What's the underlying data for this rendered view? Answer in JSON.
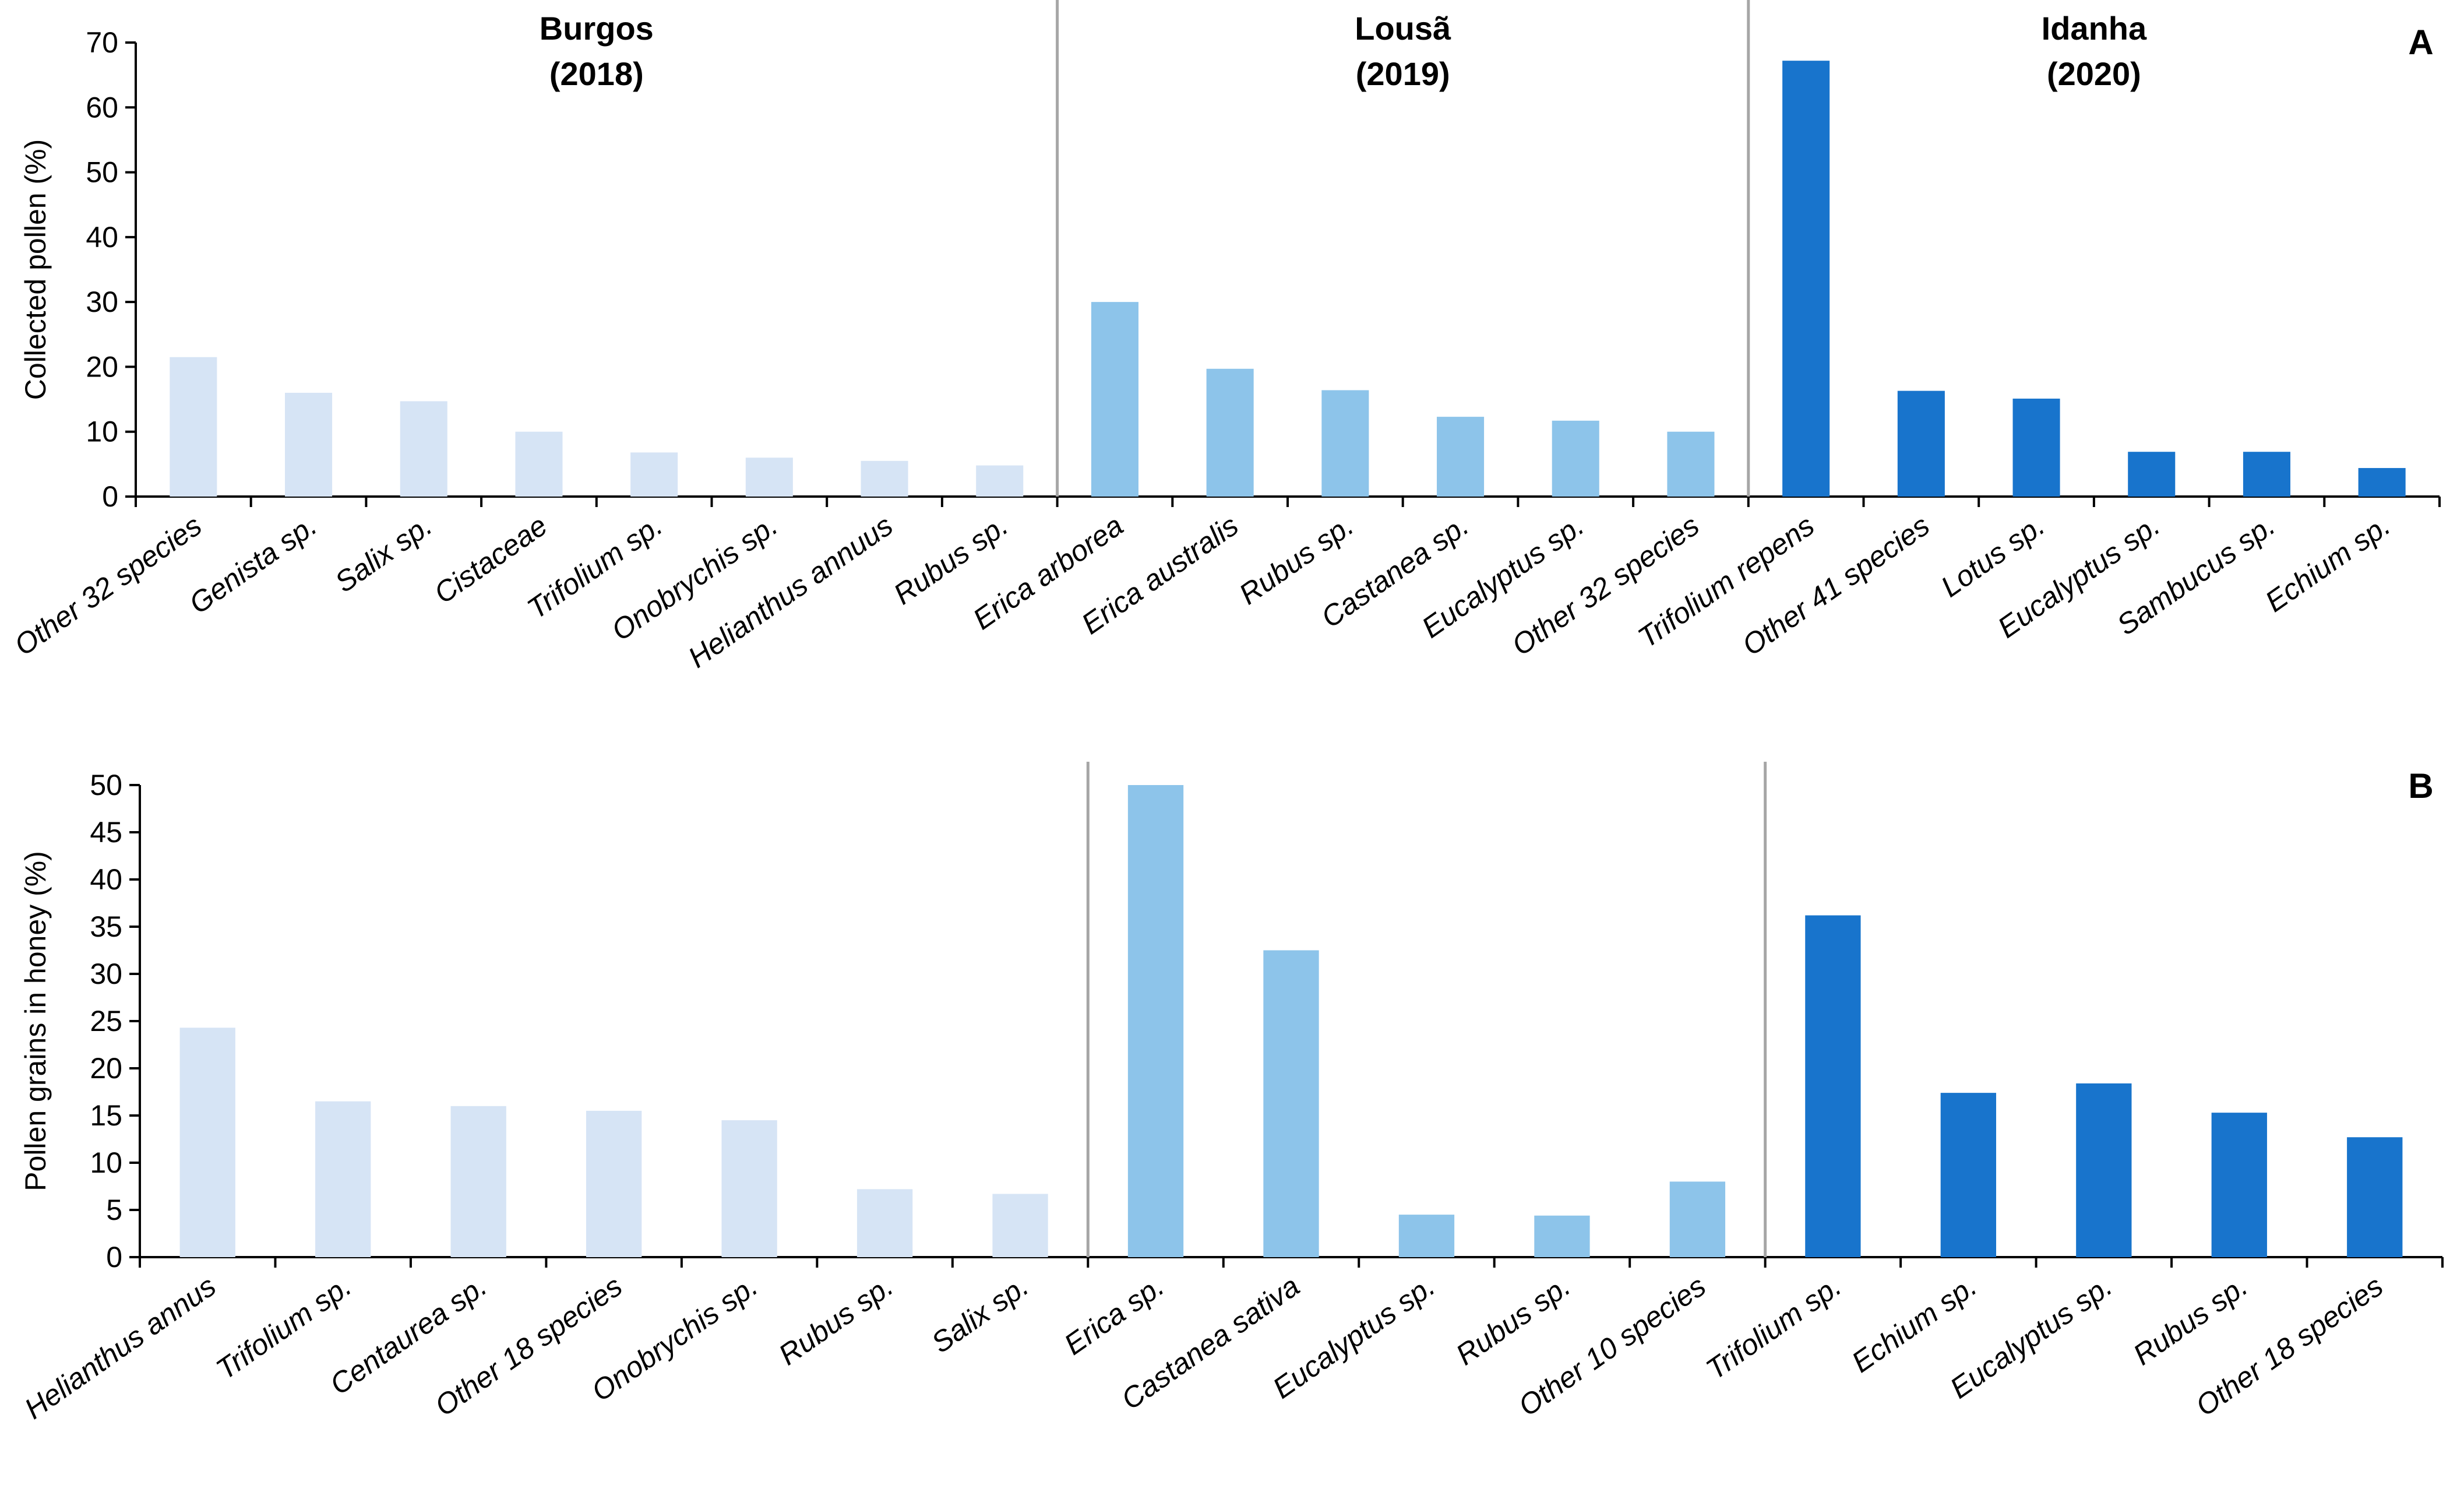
{
  "colors": {
    "Burgos": "#d6e4f5",
    "Lousã": "#8dc4ea",
    "Idanha": "#1874cc",
    "axis": "#000000",
    "separator": "#a6a6a6"
  },
  "chart_data": [
    {
      "type": "bar",
      "panel": "A",
      "ylabel": "Collected pollen (%)",
      "ylim": [
        0,
        70
      ],
      "yticks": [
        0,
        10,
        20,
        30,
        40,
        50,
        60,
        70
      ],
      "groups": [
        {
          "name": "Burgos",
          "title": [
            "Burgos",
            "(2018)"
          ],
          "categories": [
            "Other 32 species",
            "Genista sp.",
            "Salix sp.",
            "Cistaceae",
            "Trifolium sp.",
            "Onobrychis sp.",
            "Helianthus annuus",
            "Rubus sp."
          ],
          "values": [
            21.5,
            16,
            14.7,
            10,
            6.8,
            6,
            5.5,
            4.8
          ]
        },
        {
          "name": "Lousã",
          "title": [
            "Lousã",
            "(2019)"
          ],
          "categories": [
            "Erica arborea",
            "Erica australis",
            "Rubus sp.",
            "Castanea sp.",
            "Eucalyptus sp.",
            "Other 32 species"
          ],
          "values": [
            30,
            19.7,
            16.4,
            12.3,
            11.7,
            10
          ]
        },
        {
          "name": "Idanha",
          "title": [
            "Idanha",
            "(2020)"
          ],
          "categories": [
            "Trifolium repens",
            "Other 41 species",
            "Lotus sp.",
            "Eucalyptus sp.",
            "Sambucus sp.",
            "Echium sp."
          ],
          "values": [
            67.2,
            16.3,
            15.1,
            6.9,
            6.9,
            4.4
          ]
        }
      ]
    },
    {
      "type": "bar",
      "panel": "B",
      "ylabel": "Pollen grains in honey (%)",
      "ylim": [
        0,
        50
      ],
      "yticks": [
        0,
        5,
        10,
        15,
        20,
        25,
        30,
        35,
        40,
        45,
        50
      ],
      "groups": [
        {
          "name": "Burgos",
          "categories": [
            "Helianthus annus",
            "Trifolium sp.",
            "Centaurea sp.",
            "Other 18 species",
            "Onobrychis sp.",
            "Rubus sp.",
            "Salix sp."
          ],
          "values": [
            24.3,
            16.5,
            16,
            15.5,
            14.5,
            7.2,
            6.7
          ]
        },
        {
          "name": "Lousã",
          "categories": [
            "Erica sp.",
            "Castanea sativa",
            "Eucalyptus sp.",
            "Rubus sp.",
            "Other 10 species"
          ],
          "values": [
            50,
            32.5,
            4.5,
            4.4,
            8
          ]
        },
        {
          "name": "Idanha",
          "categories": [
            "Trifolium sp.",
            "Echium sp.",
            "Eucalyptus sp.",
            "Rubus sp.",
            "Other 18 species"
          ],
          "values": [
            36.2,
            17.4,
            18.4,
            15.3,
            12.7
          ]
        }
      ]
    }
  ]
}
